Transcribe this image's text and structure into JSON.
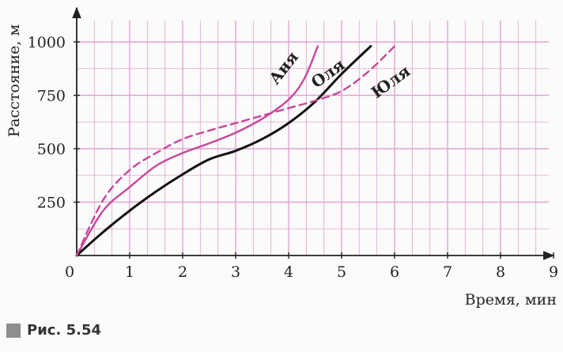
{
  "chart_data": {
    "type": "line",
    "title": "",
    "xlabel": "Время, мин",
    "ylabel": "Расстояние, м",
    "xlim": [
      0,
      9
    ],
    "ylim": [
      0,
      1000
    ],
    "x_ticks": [
      "0",
      "1",
      "2",
      "3",
      "4",
      "5",
      "6",
      "7",
      "8",
      "9"
    ],
    "y_ticks": [
      "250",
      "500",
      "750",
      "1000"
    ],
    "grid": true,
    "grid_color": "#e2a3cf",
    "series": [
      {
        "name": "Аня",
        "color": "#c8479a",
        "style": "solid",
        "points": [
          [
            0,
            0
          ],
          [
            0.5,
            210
          ],
          [
            1,
            320
          ],
          [
            1.5,
            420
          ],
          [
            2,
            480
          ],
          [
            2.5,
            525
          ],
          [
            3,
            575
          ],
          [
            3.5,
            640
          ],
          [
            4,
            730
          ],
          [
            4.3,
            830
          ],
          [
            4.55,
            980
          ]
        ]
      },
      {
        "name": "Оля",
        "color": "#111111",
        "style": "solid",
        "points": [
          [
            0,
            0
          ],
          [
            0.5,
            110
          ],
          [
            1,
            210
          ],
          [
            1.5,
            300
          ],
          [
            2,
            380
          ],
          [
            2.5,
            450
          ],
          [
            3,
            490
          ],
          [
            3.5,
            545
          ],
          [
            4,
            620
          ],
          [
            4.5,
            720
          ],
          [
            5,
            850
          ],
          [
            5.55,
            980
          ]
        ]
      },
      {
        "name": "Юля",
        "color": "#c8479a",
        "style": "dashed",
        "points": [
          [
            0,
            0
          ],
          [
            0.5,
            260
          ],
          [
            1,
            400
          ],
          [
            1.5,
            480
          ],
          [
            2,
            545
          ],
          [
            2.5,
            585
          ],
          [
            3,
            620
          ],
          [
            3.5,
            655
          ],
          [
            4,
            690
          ],
          [
            4.5,
            725
          ],
          [
            5,
            770
          ],
          [
            5.5,
            860
          ],
          [
            6,
            980
          ]
        ]
      }
    ]
  },
  "caption": {
    "text": "Рис. 5.54"
  }
}
